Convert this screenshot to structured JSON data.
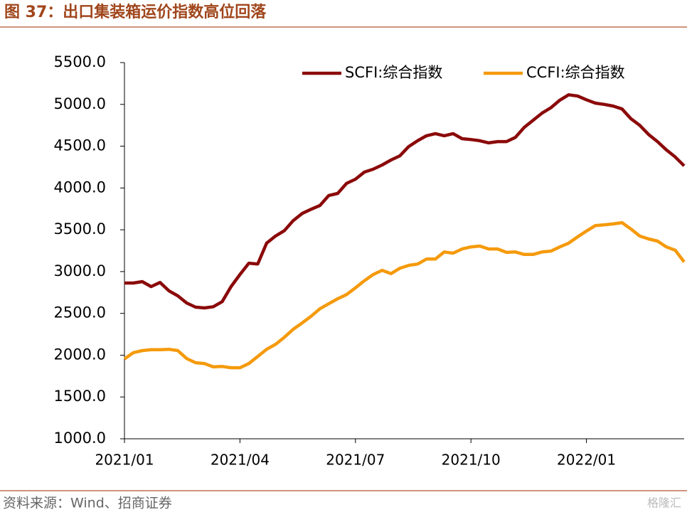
{
  "chart_data": {
    "type": "line",
    "title": "图 37：出口集装箱运价指数高位回落",
    "source": "资料来源：Wind、招商证券",
    "watermark": "格隆汇",
    "categories": [
      "2021/01",
      null,
      null,
      null,
      null,
      null,
      null,
      null,
      null,
      null,
      null,
      null,
      null,
      "2021/04",
      null,
      null,
      null,
      null,
      null,
      null,
      null,
      null,
      null,
      null,
      null,
      null,
      "2021/07",
      null,
      null,
      null,
      null,
      null,
      null,
      null,
      null,
      null,
      null,
      null,
      null,
      "2021/10",
      null,
      null,
      null,
      null,
      null,
      null,
      null,
      null,
      null,
      null,
      null,
      null,
      "2022/01",
      null,
      null,
      null,
      null,
      null,
      null,
      null,
      null,
      null,
      null,
      null
    ],
    "series": [
      {
        "name": "SCFI:综合指数",
        "color": "#8b0a0a",
        "values": [
          2863,
          2863,
          2880,
          2820,
          2870,
          2770,
          2710,
          2625,
          2575,
          2565,
          2580,
          2640,
          2820,
          2965,
          3100,
          3090,
          3340,
          3425,
          3490,
          3610,
          3695,
          3745,
          3790,
          3910,
          3935,
          4055,
          4105,
          4190,
          4225,
          4275,
          4335,
          4385,
          4495,
          4565,
          4625,
          4650,
          4625,
          4650,
          4590,
          4580,
          4565,
          4540,
          4555,
          4555,
          4605,
          4725,
          4810,
          4895,
          4960,
          5050,
          5115,
          5100,
          5055,
          5015,
          5000,
          4980,
          4945,
          4830,
          4750,
          4640,
          4555,
          4455,
          4370,
          4265
        ]
      },
      {
        "name": "CCFI:综合指数",
        "color": "#f59a0c",
        "values": [
          1955,
          2030,
          2055,
          2065,
          2065,
          2070,
          2055,
          1960,
          1910,
          1900,
          1860,
          1865,
          1850,
          1850,
          1900,
          1985,
          2070,
          2130,
          2215,
          2310,
          2385,
          2465,
          2555,
          2615,
          2675,
          2725,
          2805,
          2890,
          2965,
          3015,
          2975,
          3040,
          3075,
          3090,
          3150,
          3150,
          3235,
          3220,
          3270,
          3295,
          3305,
          3270,
          3270,
          3230,
          3235,
          3205,
          3205,
          3235,
          3245,
          3295,
          3340,
          3415,
          3485,
          3550,
          3560,
          3570,
          3585,
          3510,
          3425,
          3390,
          3365,
          3295,
          3255,
          3115
        ]
      }
    ],
    "ylim": [
      1000,
      5500
    ],
    "yticks": [
      {
        "value": 1000,
        "label": "1000.0"
      },
      {
        "value": 1500,
        "label": "1500.0"
      },
      {
        "value": 2000,
        "label": "2000.0"
      },
      {
        "value": 2500,
        "label": "2500.0"
      },
      {
        "value": 3000,
        "label": "3000.0"
      },
      {
        "value": 3500,
        "label": "3500.0"
      },
      {
        "value": 4000,
        "label": "4000.0"
      },
      {
        "value": 4500,
        "label": "4500.0"
      },
      {
        "value": 5000,
        "label": "5000.0"
      },
      {
        "value": 5500,
        "label": "5500.0"
      }
    ],
    "grid": false,
    "legend": "upper center"
  }
}
